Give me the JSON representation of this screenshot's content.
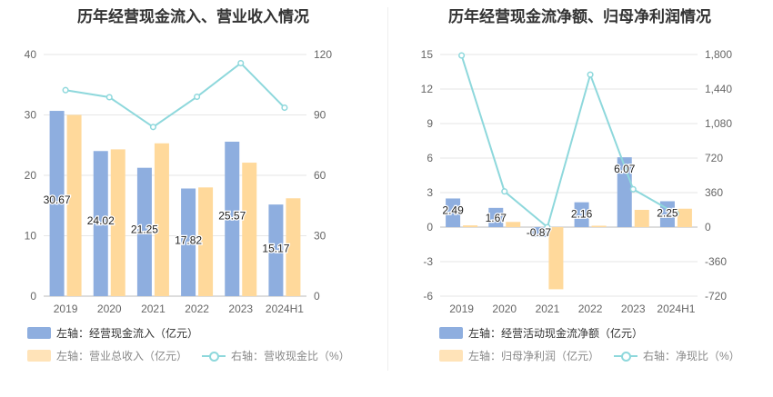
{
  "chart_data": [
    {
      "type": "bar",
      "title": "历年经营现金流入、营业收入情况",
      "categories": [
        "2019",
        "2020",
        "2021",
        "2022",
        "2023",
        "2024H1"
      ],
      "left_axis": {
        "ylim": [
          0,
          40
        ],
        "ticks": [
          "0",
          "10",
          "20",
          "30",
          "40"
        ]
      },
      "right_axis": {
        "ylim": [
          0,
          120
        ],
        "ticks": [
          "0",
          "30",
          "60",
          "90",
          "120"
        ]
      },
      "series": [
        {
          "name": "左轴：经营现金流入（亿元）",
          "axis": "left",
          "kind": "bar",
          "values": [
            30.67,
            24.02,
            21.25,
            17.82,
            25.57,
            15.17
          ],
          "labels": [
            "30.67",
            "24.02",
            "21.25",
            "17.82",
            "25.57",
            "15.17"
          ],
          "color": "#8eaedf"
        },
        {
          "name": "左轴：营业总收入（亿元）",
          "axis": "left",
          "kind": "bar",
          "values": [
            30.0,
            24.3,
            25.3,
            18.0,
            22.1,
            16.2
          ],
          "color": "#ffd99b"
        },
        {
          "name": "右轴：营收现金比（%）",
          "axis": "right",
          "kind": "line",
          "values": [
            102.3,
            98.8,
            84.0,
            99.0,
            115.7,
            93.6
          ],
          "color": "#8ed8dc"
        }
      ],
      "legend": [
        {
          "label": "左轴：经营现金流入（亿元）",
          "kind": "bar",
          "color": "#8eaedf"
        },
        {
          "label": "左轴：营业总收入（亿元）",
          "kind": "bar",
          "color": "#ffe3b8"
        },
        {
          "label": "右轴：营收现金比（%）",
          "kind": "line",
          "color": "#8ed8dc"
        }
      ]
    },
    {
      "type": "bar",
      "title": "历年经营现金流净额、归母净利润情况",
      "categories": [
        "2019",
        "2020",
        "2021",
        "2022",
        "2023",
        "2024H1"
      ],
      "left_axis": {
        "ylim": [
          -6,
          15
        ],
        "ticks": [
          "-6",
          "-3",
          "0",
          "3",
          "6",
          "9",
          "12",
          "15"
        ]
      },
      "right_axis": {
        "ylim": [
          -720,
          1800
        ],
        "ticks": [
          "-720",
          "-360",
          "0",
          "360",
          "720",
          "1,080",
          "1,440",
          "1,800"
        ]
      },
      "series": [
        {
          "name": "左轴：经营活动现金流净额（亿元）",
          "axis": "left",
          "kind": "bar",
          "values": [
            2.49,
            1.67,
            -0.87,
            2.16,
            6.07,
            2.25
          ],
          "labels": [
            "2.49",
            "1.67",
            "-0.87",
            "2.16",
            "6.07",
            "2.25"
          ],
          "color": "#8eaedf"
        },
        {
          "name": "左轴：归母净利润（亿元）",
          "axis": "left",
          "kind": "bar",
          "values": [
            0.15,
            0.45,
            -5.4,
            0.12,
            1.5,
            1.6
          ],
          "color": "#ffd99b"
        },
        {
          "name": "右轴：净现比（%）",
          "axis": "right",
          "kind": "line",
          "values": [
            1790,
            372,
            0,
            1590,
            395,
            140
          ],
          "color": "#8ed8dc"
        }
      ],
      "legend": [
        {
          "label": "左轴：经营活动现金流净额（亿元）",
          "kind": "bar",
          "color": "#8eaedf"
        },
        {
          "label": "左轴：归母净利润（亿元）",
          "kind": "bar",
          "color": "#ffe3b8"
        },
        {
          "label": "右轴：净现比（%）",
          "kind": "line",
          "color": "#8ed8dc"
        }
      ]
    }
  ]
}
